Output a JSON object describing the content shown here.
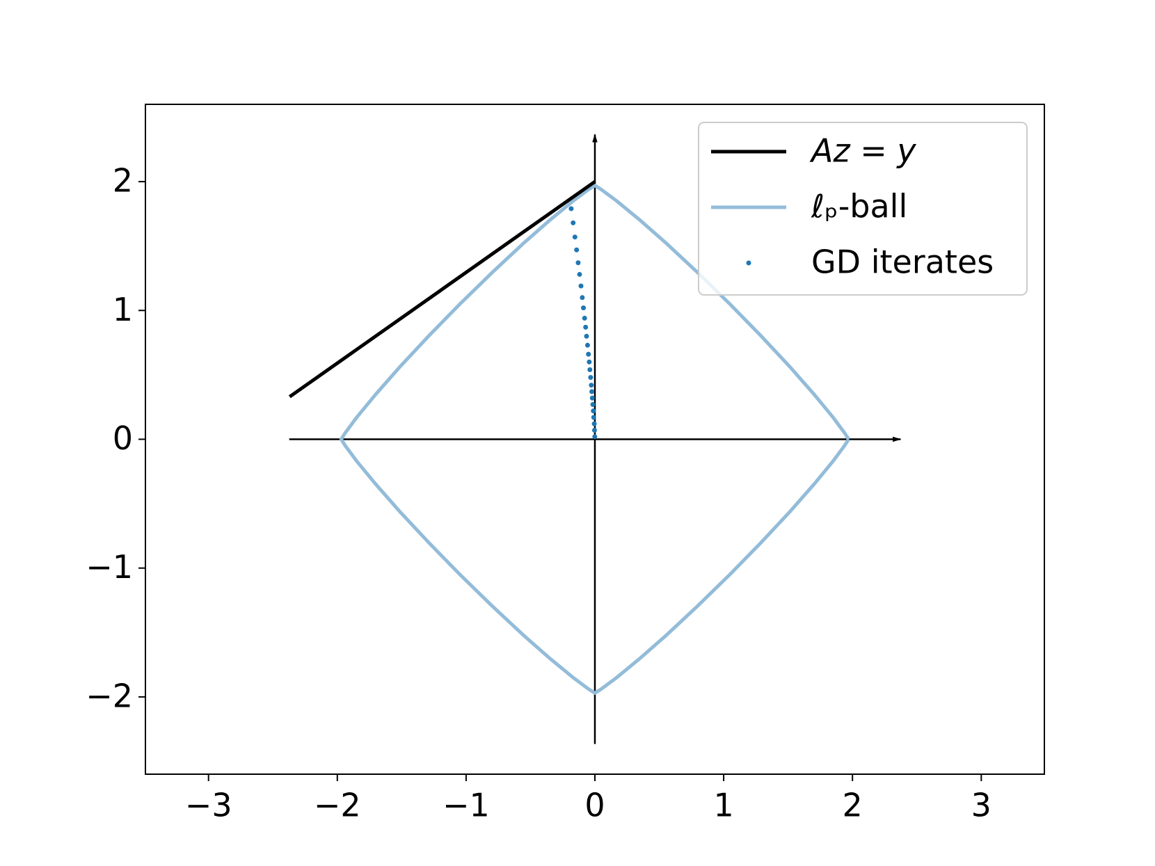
{
  "chart_data": {
    "type": "line",
    "xlim": [
      -3.49,
      3.49
    ],
    "ylim": [
      -2.6,
      2.6
    ],
    "xticks": [
      {
        "value": -3,
        "label": "−3"
      },
      {
        "value": -2,
        "label": "−2"
      },
      {
        "value": -1,
        "label": "−1"
      },
      0,
      1,
      2,
      3
    ],
    "yticks": [
      {
        "value": -2,
        "label": "−2"
      },
      {
        "value": -1,
        "label": "−1"
      },
      0,
      1,
      2
    ],
    "legend": "upper right",
    "series": [
      {
        "name": "Az = y",
        "color": "#000000",
        "marker": "line",
        "x": [
          -2.37,
          0
        ],
        "y": [
          0.33,
          2
        ]
      },
      {
        "name": "ℓₚ-ball",
        "color": "#93bcd9",
        "marker": "line",
        "x": [
          1.97,
          1.939,
          1.85,
          1.706,
          1.517,
          1.293,
          1.049,
          0.799,
          0.559,
          0.344,
          0.169,
          0.049,
          0,
          -0.049,
          -0.169,
          -0.344,
          -0.559,
          -0.799,
          -1.049,
          -1.293,
          -1.517,
          -1.706,
          -1.85,
          -1.939,
          -1.97,
          -1.939,
          -1.85,
          -1.706,
          -1.517,
          -1.293,
          -1.049,
          -0.799,
          -0.559,
          -0.344,
          -0.169,
          -0.049,
          0,
          0.049,
          0.169,
          0.344,
          0.559,
          0.799,
          1.049,
          1.293,
          1.517,
          1.706,
          1.85,
          1.939,
          1.97
        ],
        "y": [
          0,
          0.049,
          0.169,
          0.344,
          0.559,
          0.799,
          1.049,
          1.293,
          1.517,
          1.706,
          1.85,
          1.939,
          1.97,
          1.939,
          1.85,
          1.706,
          1.517,
          1.293,
          1.049,
          0.799,
          0.559,
          0.344,
          0.169,
          0.049,
          0,
          -0.049,
          -0.169,
          -0.344,
          -0.559,
          -0.799,
          -1.049,
          -1.293,
          -1.517,
          -1.706,
          -1.85,
          -1.939,
          -1.97,
          -1.939,
          -1.85,
          -1.706,
          -1.517,
          -1.293,
          -1.049,
          -0.799,
          -0.559,
          -0.344,
          -0.169,
          -0.049,
          0
        ]
      },
      {
        "name": "GD iterates",
        "color": "#1f77b4",
        "marker": "dot",
        "x": [
          -0.184,
          -0.169,
          -0.155,
          -0.142,
          -0.13,
          -0.119,
          -0.108,
          -0.098,
          -0.089,
          -0.08,
          -0.072,
          -0.065,
          -0.057,
          -0.05,
          -0.044,
          -0.039,
          -0.033,
          -0.028,
          -0.024,
          -0.02,
          -0.016,
          -0.012,
          -0.009,
          -0.005,
          -0.003,
          -0.001
        ],
        "y": [
          1.79,
          1.68,
          1.57,
          1.47,
          1.37,
          1.28,
          1.19,
          1.1,
          1.02,
          0.94,
          0.87,
          0.8,
          0.73,
          0.66,
          0.6,
          0.54,
          0.48,
          0.42,
          0.37,
          0.32,
          0.27,
          0.22,
          0.17,
          0.12,
          0.07,
          0.02
        ]
      }
    ]
  }
}
